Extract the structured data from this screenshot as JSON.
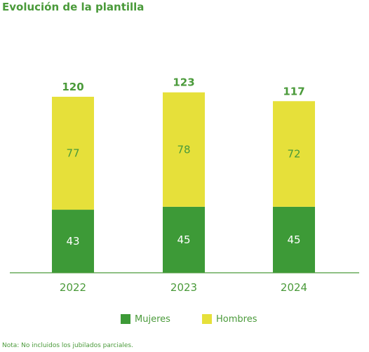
{
  "title": "Evolución de la plantilla",
  "note": "Nota: No incluidos los jubilados parciales.",
  "colors": {
    "mujeres": "#3d9a37",
    "hombres": "#e6e03a",
    "text": "#4a9a3a",
    "axis": "#4a9a3a"
  },
  "chart_data": {
    "type": "bar",
    "stacked": true,
    "categories": [
      "2022",
      "2023",
      "2024"
    ],
    "series": [
      {
        "name": "Mujeres",
        "values": [
          43,
          45,
          45
        ]
      },
      {
        "name": "Hombres",
        "values": [
          77,
          78,
          72
        ]
      }
    ],
    "totals": [
      120,
      123,
      117
    ],
    "legend_position": "bottom"
  }
}
